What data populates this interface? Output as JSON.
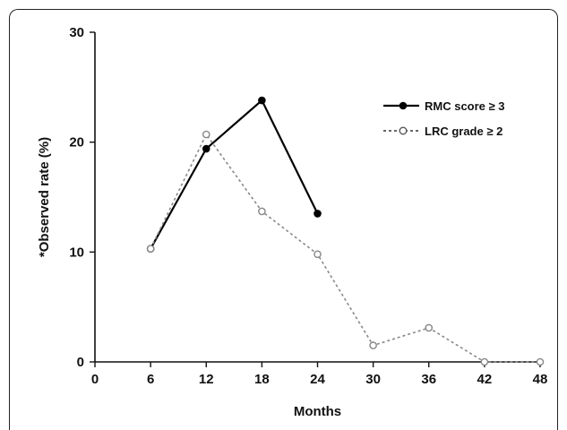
{
  "chart_data": {
    "type": "line",
    "xlabel": "Months",
    "ylabel": "*Observed rate (%)",
    "xlim": [
      0,
      48
    ],
    "ylim": [
      0,
      30
    ],
    "x_ticks": [
      "0",
      "6",
      "12",
      "18",
      "24",
      "30",
      "36",
      "42",
      "48"
    ],
    "y_ticks": [
      "0",
      "10",
      "20",
      "30"
    ],
    "grid": false,
    "legend_position": "top-right",
    "series": [
      {
        "name": "RMC score ≥ 3",
        "style": "solid",
        "marker": "filled-circle",
        "color": "#000000",
        "x": [
          6,
          12,
          18,
          24
        ],
        "y": [
          10.3,
          19.4,
          23.8,
          13.5
        ]
      },
      {
        "name": "LRC grade ≥ 2",
        "style": "dotted",
        "marker": "open-circle",
        "color": "#888888",
        "x": [
          6,
          12,
          18,
          24,
          30,
          36,
          42,
          48
        ],
        "y": [
          10.3,
          20.7,
          13.7,
          9.8,
          1.5,
          3.1,
          0,
          0
        ]
      }
    ]
  }
}
